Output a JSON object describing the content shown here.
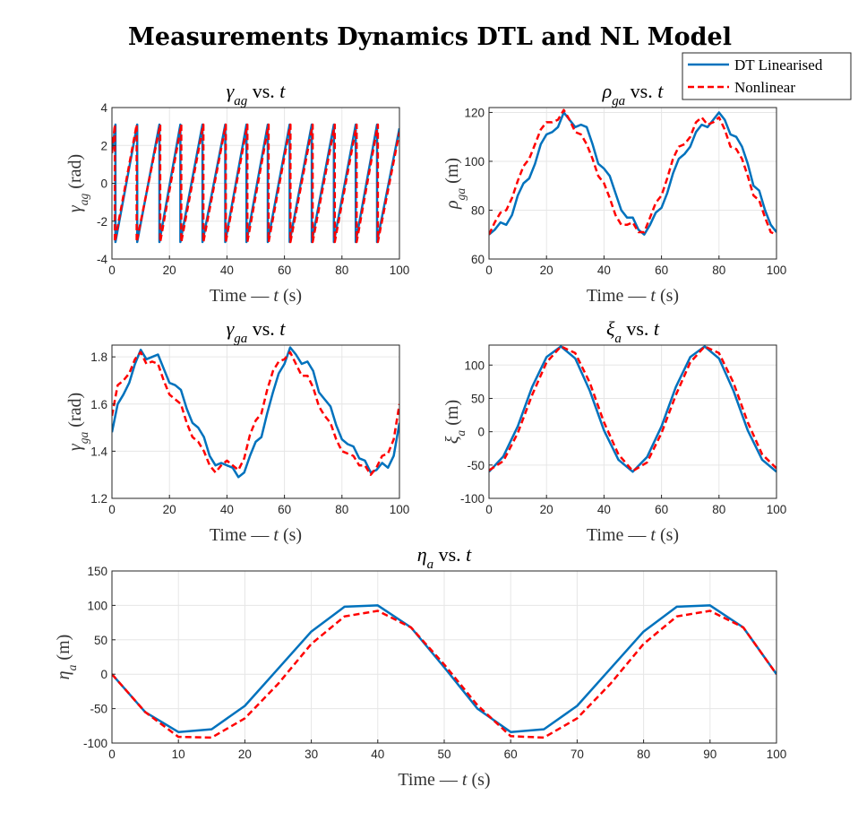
{
  "figure_title": "Measurements Dynamics DTL and NL Model",
  "colors": {
    "dtl": "#0072BD",
    "nl": "#FF0000",
    "grid": "#E6E6E6",
    "axis": "#262626"
  },
  "legend": {
    "entries": [
      {
        "label": "DT Linearised",
        "color": "#0072BD",
        "style": "solid"
      },
      {
        "label": "Nonlinear",
        "color": "#FF0000",
        "style": "dashed"
      }
    ]
  },
  "chart_data": [
    {
      "type": "line",
      "title": "γ_ag vs. t",
      "xlabel": "Time — t (s)",
      "ylabel": "γ_ag (rad)",
      "xlim": [
        0,
        100
      ],
      "ylim": [
        -4,
        4
      ],
      "xticks": [
        0,
        20,
        40,
        60,
        80,
        100
      ],
      "yticks": [
        -4,
        -2,
        0,
        2,
        4
      ],
      "grid": true,
      "series": [
        {
          "name": "DT Linearised",
          "x": [
            0,
            1.2,
            1.2,
            8.8,
            8.8,
            16.5,
            16.5,
            23.8,
            23.8,
            31.5,
            31.5,
            39.4,
            39.4,
            46.8,
            46.8,
            54.2,
            54.2,
            61.8,
            61.8,
            69.5,
            69.5,
            77.2,
            77.2,
            84.8,
            84.8,
            92.2,
            92.2,
            100
          ],
          "y": [
            1.6,
            3.1,
            -3.1,
            3.1,
            -3.1,
            3.1,
            -3.1,
            3.1,
            -3.1,
            3.1,
            -3.1,
            3.1,
            -3.1,
            3.1,
            -3.1,
            3.1,
            -3.1,
            3.1,
            -3.1,
            3.1,
            -3.1,
            3.1,
            -3.1,
            3.1,
            -3.1,
            3.1,
            -3.1,
            2.9
          ]
        },
        {
          "name": "Nonlinear",
          "x": [
            0,
            1.0,
            1.0,
            8.6,
            8.6,
            16.8,
            16.8,
            24.1,
            24.1,
            31.8,
            31.8,
            39.6,
            39.6,
            47.1,
            47.1,
            54.5,
            54.5,
            62.1,
            62.1,
            69.8,
            69.8,
            77.5,
            77.5,
            85.1,
            85.1,
            92.5,
            92.5,
            100
          ],
          "y": [
            1.6,
            3.1,
            -3.1,
            3.1,
            -3.1,
            3.1,
            -3.1,
            3.1,
            -3.1,
            3.1,
            -3.1,
            3.1,
            -3.1,
            3.1,
            -3.1,
            3.1,
            -3.1,
            3.1,
            -3.1,
            3.1,
            -3.1,
            3.1,
            -3.1,
            3.1,
            -3.1,
            3.1,
            -3.1,
            2.7
          ]
        }
      ]
    },
    {
      "type": "line",
      "title": "ρ_ga vs. t",
      "xlabel": "Time — t (s)",
      "ylabel": "ρ_ga (m)",
      "xlim": [
        0,
        100
      ],
      "ylim": [
        60,
        122
      ],
      "xticks": [
        0,
        20,
        40,
        60,
        80,
        100
      ],
      "yticks": [
        60,
        80,
        100,
        120
      ],
      "grid": true,
      "series": [
        {
          "name": "DT Linearised",
          "x": [
            0,
            2,
            4,
            6,
            8,
            10,
            12,
            14,
            16,
            18,
            20,
            22,
            24,
            26,
            28,
            30,
            32,
            34,
            36,
            38,
            40,
            42,
            44,
            46,
            48,
            50,
            52,
            54,
            56,
            58,
            60,
            62,
            64,
            66,
            68,
            70,
            72,
            74,
            76,
            78,
            80,
            82,
            84,
            86,
            88,
            90,
            92,
            94,
            96,
            98,
            100
          ],
          "y": [
            70,
            72,
            75,
            74,
            78,
            86,
            91,
            93,
            99,
            107,
            111,
            112,
            114,
            120,
            117,
            114,
            115,
            114,
            107,
            99,
            97,
            94,
            87,
            80,
            77,
            77,
            72,
            70,
            74,
            79,
            81,
            87,
            95,
            101,
            103,
            106,
            112,
            115,
            114,
            117,
            120,
            117,
            111,
            110,
            106,
            99,
            90,
            88,
            80,
            74,
            71
          ]
        },
        {
          "name": "Nonlinear",
          "x": [
            0,
            2,
            4,
            6,
            8,
            10,
            12,
            14,
            16,
            18,
            20,
            22,
            24,
            26,
            28,
            30,
            32,
            34,
            36,
            38,
            40,
            42,
            44,
            46,
            48,
            50,
            52,
            54,
            56,
            58,
            60,
            62,
            64,
            66,
            68,
            70,
            72,
            74,
            76,
            78,
            80,
            82,
            84,
            86,
            88,
            90,
            92,
            94,
            96,
            98,
            100
          ],
          "y": [
            70,
            75,
            79,
            80,
            85,
            92,
            98,
            101,
            107,
            113,
            116,
            116,
            117,
            121,
            117,
            112,
            111,
            107,
            101,
            94,
            91,
            85,
            78,
            74,
            74,
            75,
            71,
            71,
            77,
            83,
            86,
            93,
            101,
            106,
            107,
            110,
            116,
            118,
            115,
            116,
            118,
            113,
            106,
            105,
            101,
            94,
            86,
            84,
            77,
            71,
            70
          ]
        }
      ]
    },
    {
      "type": "line",
      "title": "γ_ga vs. t",
      "xlabel": "Time — t (s)",
      "ylabel": "γ_ga (rad)",
      "xlim": [
        0,
        100
      ],
      "ylim": [
        1.2,
        1.85
      ],
      "xticks": [
        0,
        20,
        40,
        60,
        80,
        100
      ],
      "yticks": [
        1.2,
        1.4,
        1.6,
        1.8
      ],
      "grid": true,
      "series": [
        {
          "name": "DT Linearised",
          "x": [
            0,
            2,
            4,
            6,
            8,
            10,
            12,
            14,
            16,
            18,
            20,
            22,
            24,
            26,
            28,
            30,
            32,
            34,
            36,
            38,
            40,
            42,
            44,
            46,
            48,
            50,
            52,
            54,
            56,
            58,
            60,
            62,
            64,
            66,
            68,
            70,
            72,
            74,
            76,
            78,
            80,
            82,
            84,
            86,
            88,
            90,
            92,
            94,
            96,
            98,
            100
          ],
          "y": [
            1.48,
            1.6,
            1.64,
            1.69,
            1.77,
            1.83,
            1.79,
            1.8,
            1.81,
            1.75,
            1.69,
            1.68,
            1.66,
            1.58,
            1.52,
            1.5,
            1.46,
            1.38,
            1.34,
            1.35,
            1.34,
            1.33,
            1.29,
            1.31,
            1.38,
            1.44,
            1.46,
            1.56,
            1.65,
            1.73,
            1.77,
            1.84,
            1.81,
            1.77,
            1.78,
            1.74,
            1.65,
            1.62,
            1.59,
            1.51,
            1.45,
            1.43,
            1.42,
            1.37,
            1.36,
            1.31,
            1.32,
            1.35,
            1.33,
            1.38,
            1.52
          ]
        },
        {
          "name": "Nonlinear",
          "x": [
            0,
            2,
            4,
            6,
            8,
            10,
            12,
            14,
            16,
            18,
            20,
            22,
            24,
            26,
            28,
            30,
            32,
            34,
            36,
            38,
            40,
            42,
            44,
            46,
            48,
            50,
            52,
            54,
            56,
            58,
            60,
            62,
            64,
            66,
            68,
            70,
            72,
            74,
            76,
            78,
            80,
            82,
            84,
            86,
            88,
            90,
            92,
            94,
            96,
            98,
            100
          ],
          "y": [
            1.55,
            1.68,
            1.7,
            1.73,
            1.79,
            1.82,
            1.77,
            1.78,
            1.77,
            1.7,
            1.64,
            1.62,
            1.6,
            1.52,
            1.46,
            1.44,
            1.4,
            1.34,
            1.31,
            1.34,
            1.36,
            1.34,
            1.32,
            1.37,
            1.47,
            1.53,
            1.56,
            1.66,
            1.74,
            1.78,
            1.79,
            1.82,
            1.77,
            1.72,
            1.72,
            1.67,
            1.59,
            1.55,
            1.52,
            1.45,
            1.4,
            1.39,
            1.38,
            1.34,
            1.34,
            1.3,
            1.33,
            1.38,
            1.39,
            1.45,
            1.6
          ]
        }
      ]
    },
    {
      "type": "line",
      "title": "ξ_a vs. t",
      "xlabel": "Time — t (s)",
      "ylabel": "ξ_a (m)",
      "xlim": [
        0,
        100
      ],
      "ylim": [
        -100,
        130
      ],
      "xticks": [
        0,
        20,
        40,
        60,
        80,
        100
      ],
      "yticks": [
        -100,
        -50,
        0,
        50,
        100
      ],
      "grid": true,
      "series": [
        {
          "name": "DT Linearised",
          "x": [
            0,
            5,
            10,
            15,
            20,
            25,
            30,
            35,
            40,
            45,
            50,
            55,
            60,
            65,
            70,
            75,
            80,
            85,
            90,
            95,
            100
          ],
          "y": [
            -60,
            -37,
            8,
            67,
            112,
            128,
            110,
            62,
            2,
            -42,
            -60,
            -38,
            8,
            67,
            112,
            128,
            110,
            62,
            2,
            -42,
            -60
          ]
        },
        {
          "name": "Nonlinear",
          "x": [
            0,
            5,
            10,
            15,
            20,
            25,
            30,
            35,
            40,
            45,
            50,
            55,
            60,
            65,
            70,
            75,
            80,
            85,
            90,
            95,
            100
          ],
          "y": [
            -58,
            -44,
            -2,
            55,
            104,
            128,
            118,
            74,
            14,
            -34,
            -59,
            -46,
            -2,
            55,
            104,
            128,
            118,
            74,
            14,
            -34,
            -55
          ]
        }
      ]
    },
    {
      "type": "line",
      "title": "η_a vs. t",
      "xlabel": "Time — t (s)",
      "ylabel": "η_a (m)",
      "xlim": [
        0,
        100
      ],
      "ylim": [
        -100,
        150
      ],
      "xticks": [
        0,
        10,
        20,
        30,
        40,
        50,
        60,
        70,
        80,
        90,
        100
      ],
      "yticks": [
        -100,
        -50,
        0,
        50,
        100,
        150
      ],
      "grid": true,
      "series": [
        {
          "name": "DT Linearised",
          "x": [
            0,
            5,
            10,
            15,
            20,
            25,
            30,
            35,
            40,
            45,
            50,
            55,
            60,
            65,
            70,
            75,
            80,
            85,
            90,
            95,
            100
          ],
          "y": [
            0,
            -55,
            -84,
            -80,
            -46,
            8,
            62,
            98,
            100,
            68,
            10,
            -50,
            -84,
            -80,
            -46,
            8,
            62,
            98,
            100,
            68,
            0
          ]
        },
        {
          "name": "Nonlinear",
          "x": [
            0,
            5,
            10,
            15,
            20,
            25,
            30,
            35,
            40,
            45,
            50,
            55,
            60,
            65,
            70,
            75,
            80,
            85,
            90,
            95,
            100
          ],
          "y": [
            0,
            -55,
            -91,
            -92,
            -64,
            -14,
            44,
            84,
            92,
            68,
            14,
            -45,
            -90,
            -92,
            -64,
            -14,
            44,
            84,
            92,
            68,
            0
          ]
        }
      ]
    }
  ]
}
